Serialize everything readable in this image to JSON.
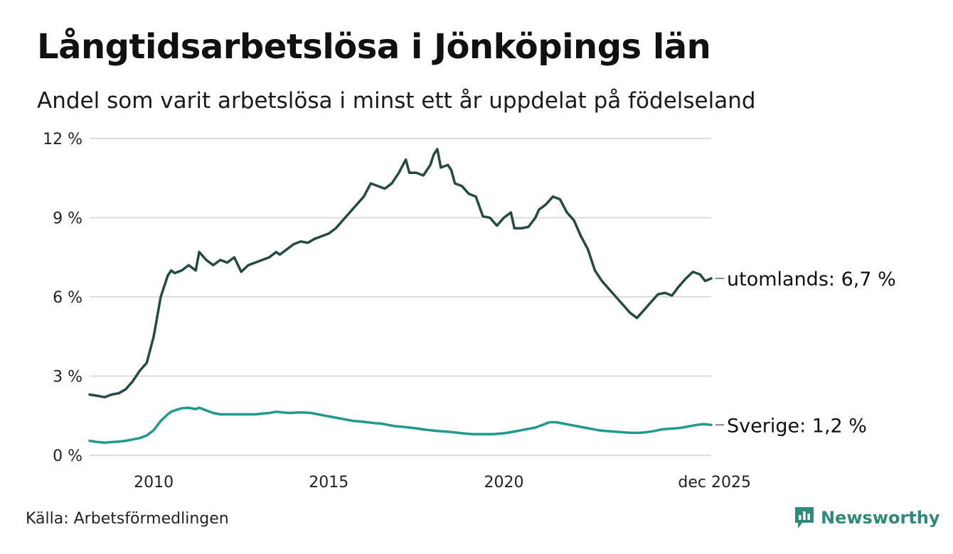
{
  "title": "Långtidsarbetslösa i Jönköpings län",
  "subtitle": "Andel som varit arbetslösa i minst ett år uppdelat på födelseland",
  "source": "Källa: Arbetsförmedlingen",
  "brand": {
    "name": "Newsworthy",
    "icon": "newsworthy-logo-icon"
  },
  "colors": {
    "utomlands": "#234b44",
    "sverige": "#1f9a8c",
    "grid": "#dddddd",
    "brand": "#2e8b7a"
  },
  "chart_data": {
    "type": "line",
    "title": "Långtidsarbetslösa i Jönköpings län",
    "ylim": [
      0,
      12
    ],
    "xlim": [
      2008.17,
      2025.92
    ],
    "yticks": [
      0,
      3,
      6,
      9,
      12
    ],
    "yticklabels": [
      "0 %",
      "3 %",
      "6 %",
      "9 %",
      "12 %"
    ],
    "xticks": [
      2010,
      2015,
      2020,
      2025.92
    ],
    "xticklabels": [
      "2010",
      "2015",
      "2020",
      "dec 2025"
    ],
    "grid": true,
    "series": [
      {
        "name": "utomlands",
        "label": "utomlands: 6,7 %",
        "color": "#234b44",
        "points": [
          [
            2008.17,
            2.3
          ],
          [
            2008.4,
            2.25
          ],
          [
            2008.6,
            2.2
          ],
          [
            2008.8,
            2.3
          ],
          [
            2009.0,
            2.35
          ],
          [
            2009.2,
            2.5
          ],
          [
            2009.4,
            2.8
          ],
          [
            2009.6,
            3.2
          ],
          [
            2009.8,
            3.5
          ],
          [
            2010.0,
            4.5
          ],
          [
            2010.2,
            6.0
          ],
          [
            2010.4,
            6.8
          ],
          [
            2010.5,
            7.0
          ],
          [
            2010.6,
            6.9
          ],
          [
            2010.8,
            7.0
          ],
          [
            2011.0,
            7.2
          ],
          [
            2011.2,
            7.0
          ],
          [
            2011.3,
            7.7
          ],
          [
            2011.5,
            7.4
          ],
          [
            2011.7,
            7.2
          ],
          [
            2011.9,
            7.4
          ],
          [
            2012.1,
            7.3
          ],
          [
            2012.3,
            7.5
          ],
          [
            2012.5,
            6.95
          ],
          [
            2012.7,
            7.2
          ],
          [
            2012.9,
            7.3
          ],
          [
            2013.1,
            7.4
          ],
          [
            2013.3,
            7.5
          ],
          [
            2013.5,
            7.7
          ],
          [
            2013.6,
            7.6
          ],
          [
            2013.8,
            7.8
          ],
          [
            2014.0,
            8.0
          ],
          [
            2014.2,
            8.1
          ],
          [
            2014.4,
            8.05
          ],
          [
            2014.6,
            8.2
          ],
          [
            2014.8,
            8.3
          ],
          [
            2015.0,
            8.4
          ],
          [
            2015.2,
            8.6
          ],
          [
            2015.4,
            8.9
          ],
          [
            2015.6,
            9.2
          ],
          [
            2015.8,
            9.5
          ],
          [
            2016.0,
            9.8
          ],
          [
            2016.2,
            10.3
          ],
          [
            2016.4,
            10.2
          ],
          [
            2016.6,
            10.1
          ],
          [
            2016.8,
            10.3
          ],
          [
            2017.0,
            10.7
          ],
          [
            2017.2,
            11.2
          ],
          [
            2017.3,
            10.7
          ],
          [
            2017.5,
            10.7
          ],
          [
            2017.7,
            10.6
          ],
          [
            2017.9,
            11.0
          ],
          [
            2018.0,
            11.4
          ],
          [
            2018.1,
            11.6
          ],
          [
            2018.2,
            10.9
          ],
          [
            2018.4,
            11.0
          ],
          [
            2018.5,
            10.8
          ],
          [
            2018.6,
            10.3
          ],
          [
            2018.8,
            10.2
          ],
          [
            2019.0,
            9.9
          ],
          [
            2019.2,
            9.8
          ],
          [
            2019.4,
            9.05
          ],
          [
            2019.6,
            9.0
          ],
          [
            2019.8,
            8.7
          ],
          [
            2020.0,
            9.0
          ],
          [
            2020.2,
            9.2
          ],
          [
            2020.3,
            8.6
          ],
          [
            2020.5,
            8.6
          ],
          [
            2020.7,
            8.65
          ],
          [
            2020.9,
            9.0
          ],
          [
            2021.0,
            9.3
          ],
          [
            2021.2,
            9.5
          ],
          [
            2021.4,
            9.8
          ],
          [
            2021.6,
            9.7
          ],
          [
            2021.8,
            9.2
          ],
          [
            2022.0,
            8.9
          ],
          [
            2022.2,
            8.3
          ],
          [
            2022.4,
            7.8
          ],
          [
            2022.6,
            7.0
          ],
          [
            2022.8,
            6.6
          ],
          [
            2023.0,
            6.3
          ],
          [
            2023.2,
            6.0
          ],
          [
            2023.4,
            5.7
          ],
          [
            2023.6,
            5.4
          ],
          [
            2023.8,
            5.2
          ],
          [
            2024.0,
            5.5
          ],
          [
            2024.2,
            5.8
          ],
          [
            2024.4,
            6.1
          ],
          [
            2024.6,
            6.15
          ],
          [
            2024.8,
            6.05
          ],
          [
            2025.0,
            6.4
          ],
          [
            2025.2,
            6.7
          ],
          [
            2025.4,
            6.95
          ],
          [
            2025.6,
            6.85
          ],
          [
            2025.75,
            6.6
          ],
          [
            2025.92,
            6.7
          ]
        ]
      },
      {
        "name": "Sverige",
        "label": "Sverige: 1,2 %",
        "color": "#1f9a8c",
        "points": [
          [
            2008.17,
            0.55
          ],
          [
            2008.4,
            0.5
          ],
          [
            2008.6,
            0.48
          ],
          [
            2008.8,
            0.5
          ],
          [
            2009.0,
            0.52
          ],
          [
            2009.2,
            0.55
          ],
          [
            2009.4,
            0.6
          ],
          [
            2009.6,
            0.65
          ],
          [
            2009.8,
            0.75
          ],
          [
            2010.0,
            0.95
          ],
          [
            2010.2,
            1.3
          ],
          [
            2010.4,
            1.55
          ],
          [
            2010.5,
            1.65
          ],
          [
            2010.6,
            1.7
          ],
          [
            2010.8,
            1.78
          ],
          [
            2011.0,
            1.8
          ],
          [
            2011.2,
            1.75
          ],
          [
            2011.3,
            1.8
          ],
          [
            2011.5,
            1.7
          ],
          [
            2011.7,
            1.6
          ],
          [
            2011.9,
            1.55
          ],
          [
            2012.1,
            1.55
          ],
          [
            2012.3,
            1.55
          ],
          [
            2012.5,
            1.55
          ],
          [
            2012.7,
            1.55
          ],
          [
            2012.9,
            1.55
          ],
          [
            2013.1,
            1.58
          ],
          [
            2013.3,
            1.6
          ],
          [
            2013.5,
            1.65
          ],
          [
            2013.7,
            1.62
          ],
          [
            2013.9,
            1.6
          ],
          [
            2014.1,
            1.62
          ],
          [
            2014.3,
            1.62
          ],
          [
            2014.5,
            1.6
          ],
          [
            2014.7,
            1.55
          ],
          [
            2014.9,
            1.5
          ],
          [
            2015.1,
            1.45
          ],
          [
            2015.3,
            1.4
          ],
          [
            2015.5,
            1.35
          ],
          [
            2015.7,
            1.3
          ],
          [
            2015.9,
            1.28
          ],
          [
            2016.1,
            1.25
          ],
          [
            2016.3,
            1.22
          ],
          [
            2016.5,
            1.2
          ],
          [
            2016.7,
            1.15
          ],
          [
            2016.9,
            1.1
          ],
          [
            2017.1,
            1.08
          ],
          [
            2017.3,
            1.05
          ],
          [
            2017.5,
            1.02
          ],
          [
            2017.7,
            0.98
          ],
          [
            2017.9,
            0.95
          ],
          [
            2018.1,
            0.92
          ],
          [
            2018.3,
            0.9
          ],
          [
            2018.5,
            0.88
          ],
          [
            2018.7,
            0.85
          ],
          [
            2018.9,
            0.82
          ],
          [
            2019.1,
            0.8
          ],
          [
            2019.3,
            0.8
          ],
          [
            2019.5,
            0.8
          ],
          [
            2019.7,
            0.8
          ],
          [
            2019.9,
            0.82
          ],
          [
            2020.1,
            0.85
          ],
          [
            2020.3,
            0.9
          ],
          [
            2020.5,
            0.95
          ],
          [
            2020.7,
            1.0
          ],
          [
            2020.9,
            1.05
          ],
          [
            2021.1,
            1.15
          ],
          [
            2021.3,
            1.25
          ],
          [
            2021.5,
            1.25
          ],
          [
            2021.7,
            1.2
          ],
          [
            2021.9,
            1.15
          ],
          [
            2022.1,
            1.1
          ],
          [
            2022.3,
            1.05
          ],
          [
            2022.5,
            1.0
          ],
          [
            2022.7,
            0.95
          ],
          [
            2022.9,
            0.92
          ],
          [
            2023.1,
            0.9
          ],
          [
            2023.3,
            0.88
          ],
          [
            2023.5,
            0.86
          ],
          [
            2023.7,
            0.85
          ],
          [
            2023.9,
            0.85
          ],
          [
            2024.1,
            0.88
          ],
          [
            2024.3,
            0.92
          ],
          [
            2024.5,
            0.98
          ],
          [
            2024.7,
            1.0
          ],
          [
            2024.9,
            1.02
          ],
          [
            2025.1,
            1.05
          ],
          [
            2025.3,
            1.1
          ],
          [
            2025.5,
            1.15
          ],
          [
            2025.7,
            1.18
          ],
          [
            2025.92,
            1.15
          ]
        ]
      }
    ]
  }
}
